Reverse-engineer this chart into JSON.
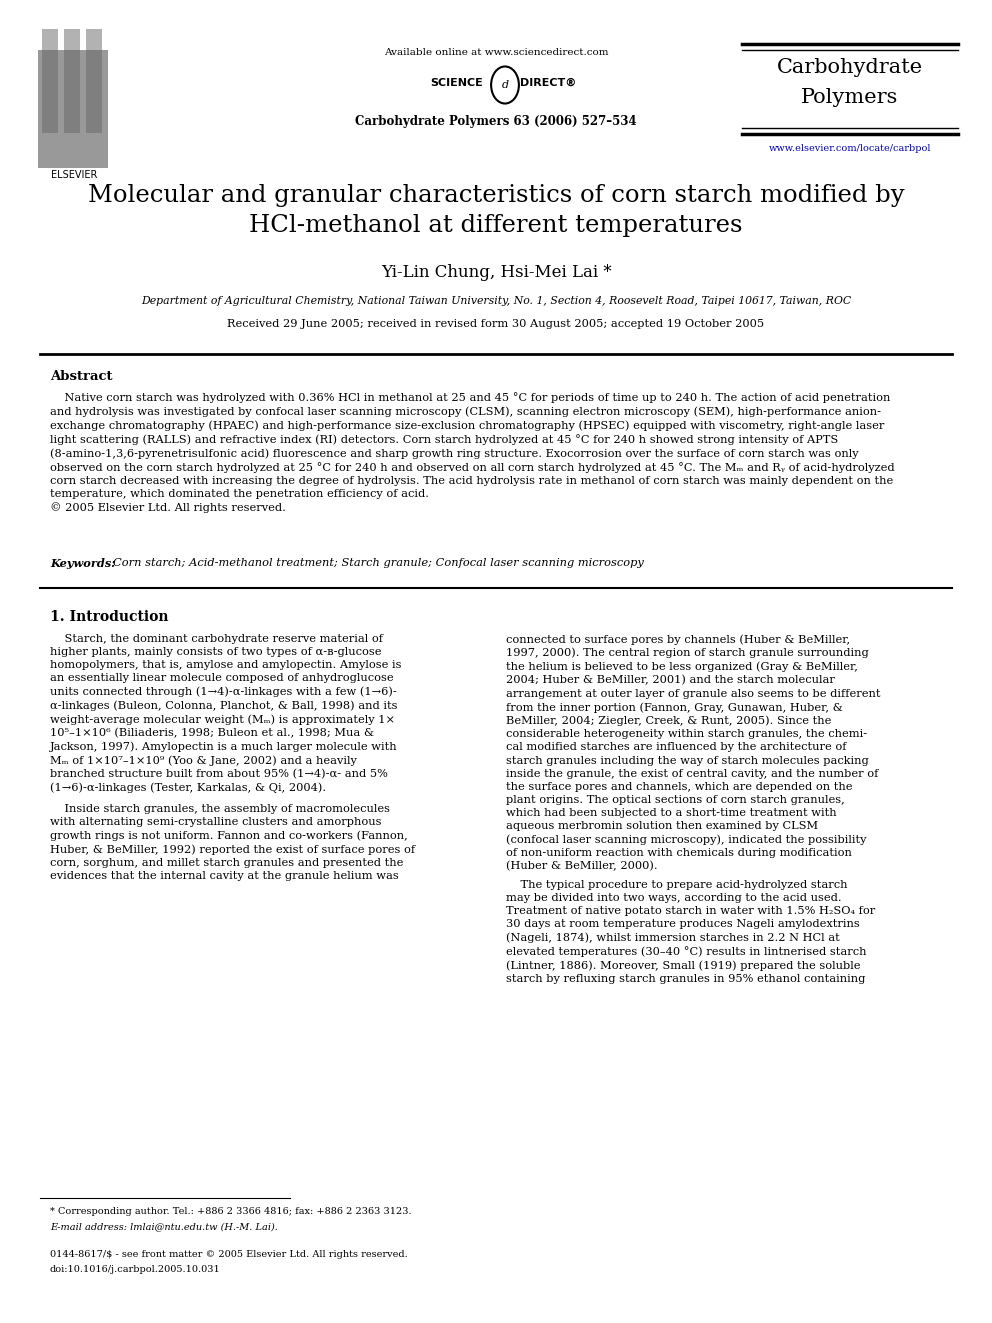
{
  "page_width": 9.92,
  "page_height": 13.23,
  "bg_color": "#ffffff",
  "available_online": "Available online at www.sciencedirect.com",
  "journal_info": "Carbohydrate Polymers 63 (2006) 527–534",
  "journal_name_line1": "Carbohydrate",
  "journal_name_line2": "Polymers",
  "url": "www.elsevier.com/locate/carbpol",
  "elsevier_text": "ELSEVIER",
  "title": "Molecular and granular characteristics of corn starch modified by\nHCl-methanol at different temperatures",
  "authors": "Yi-Lin Chung, Hsi-Mei Lai *",
  "affiliation": "Department of Agricultural Chemistry, National Taiwan University, No. 1, Section 4, Roosevelt Road, Taipei 10617, Taiwan, ROC",
  "received": "Received 29 June 2005; received in revised form 30 August 2005; accepted 19 October 2005",
  "abstract_title": "Abstract",
  "abstract_text": "    Native corn starch was hydrolyzed with 0.36% HCl in methanol at 25 and 45 °C for periods of time up to 240 h. The action of acid penetration\nand hydrolysis was investigated by confocal laser scanning microscopy (CLSM), scanning electron microscopy (SEM), high-performance anion-\nexchange chromatography (HPAEC) and high-performance size-exclusion chromatography (HPSEC) equipped with viscometry, right-angle laser\nlight scattering (RALLS) and refractive index (RI) detectors. Corn starch hydrolyzed at 45 °C for 240 h showed strong intensity of APTS\n(8-amino-1,3,6-pyrenetrisulfonic acid) fluorescence and sharp growth ring structure. Exocorrosion over the surface of corn starch was only\nobserved on the corn starch hydrolyzed at 25 °C for 240 h and observed on all corn starch hydrolyzed at 45 °C. The Mₘ and Rᵧ of acid-hydrolyzed\ncorn starch decreased with increasing the degree of hydrolysis. The acid hydrolysis rate in methanol of corn starch was mainly dependent on the\ntemperature, which dominated the penetration efficiency of acid.\n© 2005 Elsevier Ltd. All rights reserved.",
  "keywords_label": "Keywords:",
  "keywords_text": "Corn starch; Acid-methanol treatment; Starch granule; Confocal laser scanning microscopy",
  "section1_title": "1. Introduction",
  "col1_p1": "    Starch, the dominant carbohydrate reserve material of\nhigher plants, mainly consists of two types of α-ʙ-glucose\nhomopolymers, that is, amylose and amylopectin. Amylose is\nan essentially linear molecule composed of anhydroglucose\nunits connected through (1→4)-α-linkages with a few (1→6)-\nα-linkages (Buleon, Colonna, Planchot, & Ball, 1998) and its\nweight-average molecular weight (Mₘ) is approximately 1×\n10⁵–1×10⁶ (Biliaderis, 1998; Buleon et al., 1998; Mua &\nJackson, 1997). Amylopectin is a much larger molecule with\nMₘ of 1×10⁷–1×10⁹ (Yoo & Jane, 2002) and a heavily\nbranched structure built from about 95% (1→4)-α- and 5%\n(1→6)-α-linkages (Tester, Karkalas, & Qi, 2004).",
  "col1_p2": "    Inside starch granules, the assembly of macromolecules\nwith alternating semi-crystalline clusters and amorphous\ngrowth rings is not uniform. Fannon and co-workers (Fannon,\nHuber, & BeMiller, 1992) reported the exist of surface pores of\ncorn, sorghum, and millet starch granules and presented the\nevidences that the internal cavity at the granule helium was",
  "col2_p1": "connected to surface pores by channels (Huber & BeMiller,\n1997, 2000). The central region of starch granule surrounding\nthe helium is believed to be less organized (Gray & BeMiller,\n2004; Huber & BeMiller, 2001) and the starch molecular\narrangement at outer layer of granule also seems to be different\nfrom the inner portion (Fannon, Gray, Gunawan, Huber, &\nBeMiller, 2004; Ziegler, Creek, & Runt, 2005). Since the\nconsiderable heterogeneity within starch granules, the chemi-\ncal modified starches are influenced by the architecture of\nstarch granules including the way of starch molecules packing\ninside the granule, the exist of central cavity, and the number of\nthe surface pores and channels, which are depended on the\nplant origins. The optical sections of corn starch granules,\nwhich had been subjected to a short-time treatment with\naqueous merbromin solution then examined by CLSM\n(confocal laser scanning microscopy), indicated the possibility\nof non-uniform reaction with chemicals during modification\n(Huber & BeMiller, 2000).",
  "col2_p2": "    The typical procedure to prepare acid-hydrolyzed starch\nmay be divided into two ways, according to the acid used.\nTreatment of native potato starch in water with 1.5% H₂SO₄ for\n30 days at room temperature produces Nageli amylodextrins\n(Nageli, 1874), whilst immersion starches in 2.2 N HCl at\nelevated temperatures (30–40 °C) results in lintnerised starch\n(Lintner, 1886). Moreover, Small (1919) prepared the soluble\nstarch by refluxing starch granules in 95% ethanol containing",
  "footnote1": "* Corresponding author. Tel.: +886 2 3366 4816; fax: +886 2 2363 3123.",
  "footnote2": "E-mail address: lmlai@ntu.edu.tw (H.-M. Lai).",
  "footnote3": "0144-8617/$ - see front matter © 2005 Elsevier Ltd. All rights reserved.",
  "footnote4": "doi:10.1016/j.carbpol.2005.10.031",
  "text_color": "#000000",
  "link_color": "#0000bb",
  "ref_color": "#0000bb"
}
